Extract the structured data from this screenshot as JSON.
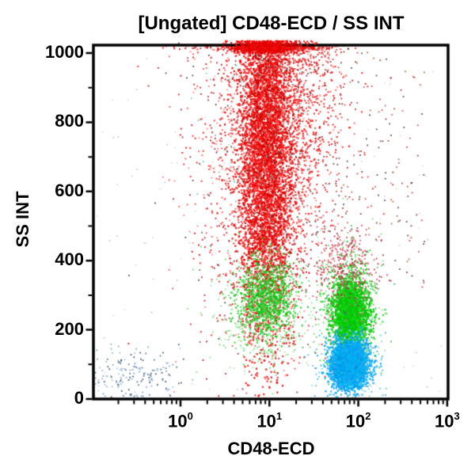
{
  "title": "[Ungated] CD48-ECD / SS INT",
  "chart_data": {
    "type": "scatter",
    "subtype": "flow-cytometry-dot-plot",
    "title": "[Ungated] CD48-ECD / SS INT",
    "xlabel": "CD48-ECD",
    "ylabel": "SS INT",
    "x_scale": "log",
    "x_range": [
      0.1,
      1000
    ],
    "y_scale": "linear",
    "y_range": [
      0,
      1023
    ],
    "grid": false,
    "legend": false,
    "background": "#ffffff",
    "frame_color": "#000000",
    "x_ticks": [
      {
        "base": "10",
        "exp": "0",
        "value": 1
      },
      {
        "base": "10",
        "exp": "1",
        "value": 10
      },
      {
        "base": "10",
        "exp": "2",
        "value": 100
      },
      {
        "base": "10",
        "exp": "3",
        "value": 1000
      }
    ],
    "x_minor_multiples": [
      2,
      3,
      4,
      5,
      6,
      7,
      8,
      9
    ],
    "y_ticks": [
      {
        "value": 1000,
        "label": "1000"
      },
      {
        "value": 800,
        "label": "800"
      },
      {
        "value": 600,
        "label": "600"
      },
      {
        "value": 400,
        "label": "400"
      },
      {
        "value": 200,
        "label": "200"
      },
      {
        "value": 0,
        "label": "0"
      }
    ],
    "y_minor_ticks": [
      100,
      300,
      500,
      700,
      900
    ],
    "seed": 20240613,
    "populations": [
      {
        "name": "background-noise",
        "colors": [
          "#bbccdd",
          "#ccddcc",
          "#ddcccc",
          "#aabbcc"
        ],
        "n": 140,
        "size": 1.6,
        "x": {
          "dist": "uniform",
          "min": -0.95,
          "max": 2.95
        },
        "y": {
          "dist": "uniform",
          "min": 10,
          "max": 1000
        }
      },
      {
        "name": "debris-left",
        "colors": [
          "#7799bb",
          "#99bbdd",
          "#556688",
          "#334455",
          "#88aacc"
        ],
        "n": 175,
        "size": 1.8,
        "x": {
          "dist": "normal",
          "mean": -0.52,
          "sd": 0.28
        },
        "y": {
          "dist": "normal",
          "mean": 75,
          "sd": 38
        },
        "y_min": 4
      },
      {
        "name": "granulocytes-red-halo",
        "colors": [
          "#ee2222",
          "#ff5555",
          "#cc1111",
          "#b03040",
          "#ff8888"
        ],
        "n": 1900,
        "size": 2.0,
        "x": {
          "dist": "normal",
          "mean": 0.95,
          "sd": 0.4
        },
        "y": {
          "dist": "normal",
          "mean": 720,
          "sd": 290
        },
        "y_max": 1023
      },
      {
        "name": "granulocytes-red-core",
        "colors": [
          "#ee0505",
          "#f51111",
          "#d90000",
          "#ff2a2a",
          "#c70000"
        ],
        "n": 5200,
        "size": 2.3,
        "x": {
          "dist": "normal",
          "mean": 0.96,
          "sd": 0.155
        },
        "y": {
          "dist": "normal",
          "mean": 730,
          "sd": 265
        },
        "y_max": 1023
      },
      {
        "name": "granulocytes-red-right-streak",
        "colors": [
          "#e81414",
          "#d42222",
          "#f04040"
        ],
        "n": 520,
        "size": 2.0,
        "x": {
          "dist": "normal",
          "mean": 1.4,
          "sd": 0.2
        },
        "y": {
          "dist": "normal",
          "mean": 860,
          "sd": 170
        },
        "y_max": 1023
      },
      {
        "name": "red-sparse-field",
        "colors": [
          "#cc3333",
          "#882222",
          "#553333",
          "#bb5544"
        ],
        "n": 260,
        "size": 1.8,
        "x": {
          "dist": "uniform",
          "min": 1.05,
          "max": 2.75
        },
        "y": {
          "dist": "uniform",
          "min": 320,
          "max": 1010
        }
      },
      {
        "name": "dark-specks",
        "colors": [
          "#552222",
          "#333333",
          "#774444"
        ],
        "n": 210,
        "size": 1.8,
        "x": {
          "dist": "normal",
          "mean": 1.0,
          "sd": 0.5
        },
        "y": {
          "dist": "normal",
          "mean": 700,
          "sd": 290
        }
      },
      {
        "name": "cyan-specks",
        "colors": [
          "#7cc8bc",
          "#9adccd",
          "#67b9a9"
        ],
        "n": 130,
        "size": 1.8,
        "x": {
          "dist": "normal",
          "mean": 0.97,
          "sd": 0.33
        },
        "y": {
          "dist": "normal",
          "mean": 700,
          "sd": 280
        }
      },
      {
        "name": "monocytes-green-left-halo",
        "colors": [
          "#88dd88",
          "#a8e8a8",
          "#66cc66"
        ],
        "n": 380,
        "size": 1.9,
        "x": {
          "dist": "normal",
          "mean": 0.93,
          "sd": 0.3
        },
        "y": {
          "dist": "normal",
          "mean": 245,
          "sd": 85
        }
      },
      {
        "name": "monocytes-green-left",
        "colors": [
          "#11cc11",
          "#33cc33",
          "#00bb00",
          "#55cc55"
        ],
        "n": 950,
        "size": 2.1,
        "x": {
          "dist": "normal",
          "mean": 0.97,
          "sd": 0.16
        },
        "y": {
          "dist": "normal",
          "mean": 290,
          "sd": 55
        }
      },
      {
        "name": "lymphocytes-green-right-halo",
        "colors": [
          "#55cc55",
          "#88dd88",
          "#33bb44"
        ],
        "n": 520,
        "size": 1.9,
        "x": {
          "dist": "normal",
          "mean": 1.9,
          "sd": 0.19
        },
        "y": {
          "dist": "normal",
          "mean": 255,
          "sd": 90
        }
      },
      {
        "name": "lymphocytes-green-right",
        "colors": [
          "#00d400",
          "#00c400",
          "#22dd22",
          "#11bb11"
        ],
        "n": 2300,
        "size": 2.2,
        "x": {
          "dist": "normal",
          "mean": 1.915,
          "sd": 0.105
        },
        "y": {
          "dist": "normal",
          "mean": 250,
          "sd": 52
        }
      },
      {
        "name": "red-over-green-overlap",
        "colors": [
          "#dd4455",
          "#cc5566",
          "#993344",
          "#bb2233"
        ],
        "n": 330,
        "size": 1.9,
        "x": {
          "dist": "normal",
          "mean": 1.85,
          "sd": 0.17
        },
        "y": {
          "dist": "normal",
          "mean": 385,
          "sd": 60
        }
      },
      {
        "name": "lymphocytes-blue-halo",
        "colors": [
          "#55bbee",
          "#33aadd",
          "#0099dd",
          "#88ccee"
        ],
        "n": 600,
        "size": 1.9,
        "x": {
          "dist": "normal",
          "mean": 1.89,
          "sd": 0.16
        },
        "y": {
          "dist": "normal",
          "mean": 105,
          "sd": 48
        },
        "y_min": 4
      },
      {
        "name": "lymphocytes-blue-core",
        "colors": [
          "#0b9ff0",
          "#00a8f8",
          "#26aaf2",
          "#0090e0",
          "#00b4f4",
          "#00c0ee"
        ],
        "n": 3300,
        "size": 2.3,
        "x": {
          "dist": "normal",
          "mean": 1.905,
          "sd": 0.095
        },
        "y": {
          "dist": "normal",
          "mean": 100,
          "sd": 30
        },
        "y_min": 6
      },
      {
        "name": "red-top-overflow",
        "colors": [
          "#ee0505",
          "#d90000",
          "#f51111"
        ],
        "n": 750,
        "size": 2.2,
        "layer": "above-frame",
        "x": {
          "dist": "normal",
          "mean": 0.96,
          "sd": 0.19
        },
        "y": {
          "dist": "uniform",
          "min": 1000,
          "max": 1035
        }
      }
    ]
  }
}
